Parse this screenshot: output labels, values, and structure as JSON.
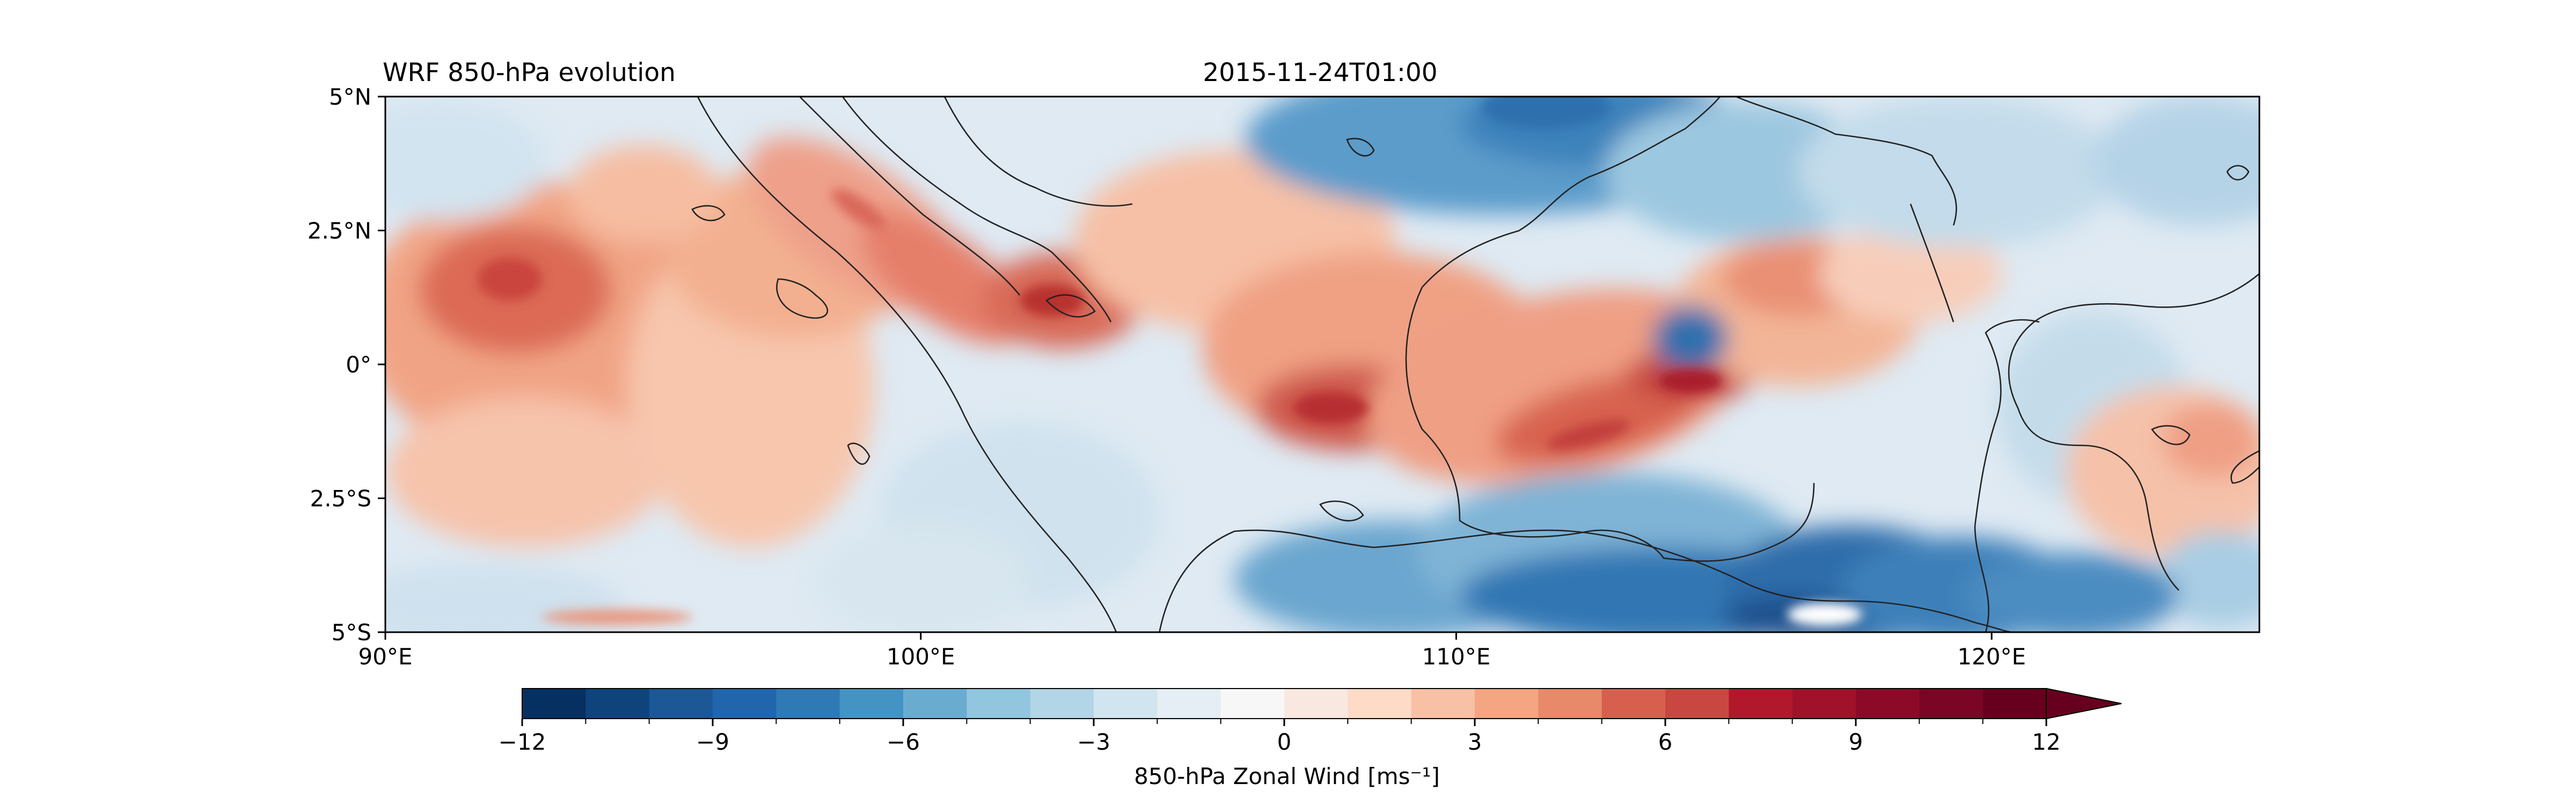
{
  "figure": {
    "title_left": "WRF 850-hPa evolution",
    "title_center": "2015-11-24T01:00"
  },
  "map": {
    "lon_range": [
      90,
      125
    ],
    "lat_range": [
      -5,
      5
    ],
    "lat_ticks": [
      {
        "value": 5,
        "label": "5°N"
      },
      {
        "value": 2.5,
        "label": "2.5°N"
      },
      {
        "value": 0,
        "label": "0°"
      },
      {
        "value": -2.5,
        "label": "2.5°S"
      },
      {
        "value": -5,
        "label": "5°S"
      }
    ],
    "lon_ticks": [
      {
        "value": 90,
        "label": "90°E"
      },
      {
        "value": 100,
        "label": "100°E"
      },
      {
        "value": 110,
        "label": "110°E"
      },
      {
        "value": 120,
        "label": "120°E"
      }
    ],
    "field": "850-hPa zonal wind (filled contours)",
    "coastlines": true
  },
  "colorbar": {
    "label": "850-hPa Zonal Wind [ms⁻¹]",
    "min": -12,
    "max": 12,
    "step": 1,
    "extend": "max",
    "tick_labels": [
      {
        "value": -12,
        "label": "−12"
      },
      {
        "value": -9,
        "label": "−9"
      },
      {
        "value": -6,
        "label": "−6"
      },
      {
        "value": -3,
        "label": "−3"
      },
      {
        "value": 0,
        "label": "0"
      },
      {
        "value": 3,
        "label": "3"
      },
      {
        "value": 6,
        "label": "6"
      },
      {
        "value": 9,
        "label": "9"
      },
      {
        "value": 12,
        "label": "12"
      }
    ],
    "colors": [
      "#053061",
      "#0f437b",
      "#1c5796",
      "#2166ac",
      "#2f79b5",
      "#4393c3",
      "#6aacd0",
      "#92c5de",
      "#b2d5e7",
      "#d1e5f0",
      "#e4eef4",
      "#f7f7f7",
      "#f9e8e0",
      "#fddbc7",
      "#f8c0a4",
      "#f4a582",
      "#e8896a",
      "#d6604d",
      "#c94741",
      "#b2182b",
      "#a0112a",
      "#8c0a28",
      "#7a0524",
      "#67001f"
    ]
  }
}
